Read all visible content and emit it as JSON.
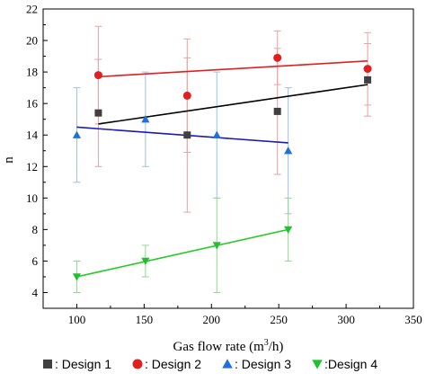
{
  "chart_data": {
    "type": "scatter",
    "title": "",
    "xlabel": "Gas flow rate (m",
    "xlabel_sup": "3",
    "xlabel_tail": "/h)",
    "ylabel": "n",
    "xlim": [
      75,
      350
    ],
    "ylim": [
      3,
      22
    ],
    "xticks": [
      100,
      150,
      200,
      250,
      300,
      350
    ],
    "yticks": [
      4,
      6,
      8,
      10,
      12,
      14,
      16,
      18,
      20,
      22
    ],
    "grid": false,
    "legend_position": "bottom",
    "series": [
      {
        "name": "Design 1",
        "legend_label": ": Design 1",
        "marker": "square",
        "color": "#404040",
        "line_color": "#000000",
        "errorbar_color": "#e8a0a0",
        "x": [
          116,
          182,
          249,
          316
        ],
        "y": [
          15.4,
          14.0,
          15.5,
          17.5
        ],
        "err": [
          3.4,
          4.9,
          4.0,
          2.3
        ],
        "fit": [
          [
            116,
            14.7
          ],
          [
            316,
            17.2
          ]
        ]
      },
      {
        "name": "Design 2",
        "legend_label": ": Design 2",
        "marker": "circle",
        "color": "#e02020",
        "line_color": "#e02020",
        "errorbar_color": "#f0a0a0",
        "x": [
          116,
          182,
          249,
          316
        ],
        "y": [
          17.8,
          16.5,
          18.9,
          18.2
        ],
        "err": [
          3.1,
          3.6,
          1.7,
          2.3
        ],
        "fit": [
          [
            116,
            17.7
          ],
          [
            316,
            18.7
          ]
        ]
      },
      {
        "name": "Design 3",
        "legend_label": ": Design 3",
        "marker": "triangle-up",
        "color": "#1f6fdc",
        "line_color": "#1a1ab8",
        "errorbar_color": "#9cc0e8",
        "x": [
          100,
          151,
          204,
          257
        ],
        "y": [
          14.0,
          15.0,
          14.0,
          13.0
        ],
        "err": [
          3.0,
          3.0,
          4.0,
          4.0
        ],
        "fit": [
          [
            100,
            14.5
          ],
          [
            257,
            13.5
          ]
        ]
      },
      {
        "name": "Design 4",
        "legend_label": ":Design 4",
        "marker": "triangle-down",
        "color": "#22c030",
        "line_color": "#22cc22",
        "errorbar_color": "#90d890",
        "x": [
          100,
          151,
          204,
          257
        ],
        "y": [
          5.0,
          6.0,
          7.0,
          8.0
        ],
        "err": [
          1.0,
          1.0,
          3.0,
          2.0
        ],
        "fit": [
          [
            100,
            5.0
          ],
          [
            257,
            8.0
          ]
        ]
      }
    ]
  }
}
